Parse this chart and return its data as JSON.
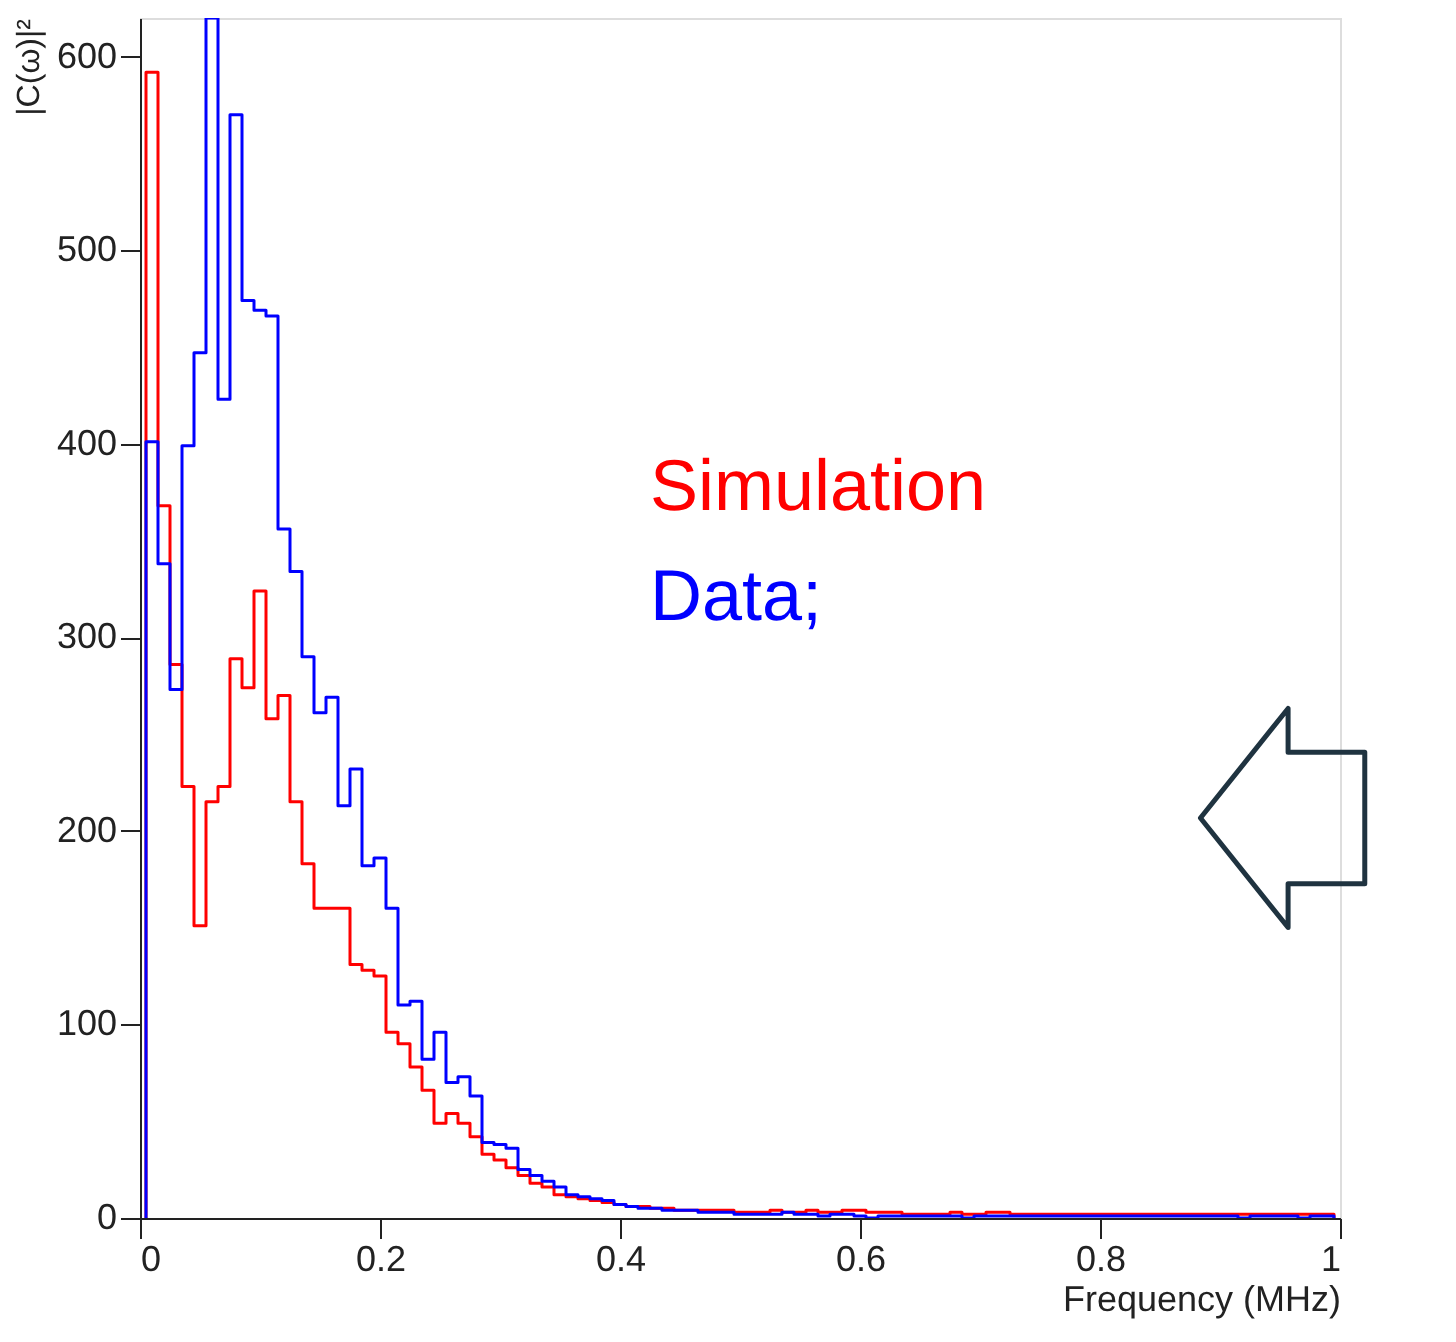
{
  "chart_data": {
    "type": "histogram",
    "xlabel": "Frequency (MHz)",
    "ylabel": "|C(ω)|²",
    "bins": [
      0.005,
      0.015,
      0.025,
      0.035,
      0.045,
      0.055,
      0.065,
      0.075,
      0.085,
      0.095,
      0.105,
      0.115,
      0.125,
      0.135,
      0.145,
      0.155,
      0.165,
      0.175,
      0.185,
      0.195,
      0.205,
      0.215,
      0.225,
      0.235,
      0.245,
      0.255,
      0.265,
      0.275,
      0.285,
      0.295,
      0.305,
      0.315,
      0.325,
      0.335,
      0.345,
      0.355,
      0.365,
      0.375,
      0.385,
      0.395,
      0.405,
      0.415,
      0.425,
      0.435,
      0.445,
      0.455,
      0.465,
      0.475,
      0.485,
      0.495,
      0.505,
      0.515,
      0.525,
      0.535,
      0.545,
      0.555,
      0.565,
      0.575,
      0.585,
      0.595,
      0.605,
      0.615,
      0.625,
      0.635,
      0.645,
      0.655,
      0.665,
      0.675,
      0.685,
      0.695,
      0.705,
      0.715,
      0.725,
      0.735,
      0.745,
      0.755,
      0.765,
      0.775,
      0.785,
      0.795,
      0.805,
      0.815,
      0.825,
      0.835,
      0.845,
      0.855,
      0.865,
      0.875,
      0.885,
      0.895,
      0.905,
      0.915,
      0.925,
      0.935,
      0.945,
      0.955,
      0.965,
      0.975,
      0.985,
      0.995
    ],
    "series": [
      {
        "name": "Simulation",
        "color": "#ff0000",
        "values": [
          592,
          368,
          286,
          223,
          151,
          215,
          223,
          289,
          274,
          324,
          258,
          270,
          215,
          183,
          160,
          160,
          160,
          131,
          128,
          125,
          96,
          90,
          78,
          66,
          49,
          54,
          49,
          42,
          33,
          30,
          26,
          22,
          18,
          16,
          12,
          11,
          10,
          9,
          8,
          7,
          6,
          6,
          5,
          5,
          4,
          4,
          4,
          4,
          4,
          3,
          3,
          3,
          4,
          3,
          3,
          4,
          3,
          3,
          4,
          4,
          3,
          3,
          3,
          2,
          2,
          2,
          2,
          3,
          2,
          2,
          3,
          3,
          2,
          2,
          2,
          2,
          2,
          2,
          2,
          2,
          2,
          2,
          2,
          2,
          2,
          2,
          2,
          2,
          2,
          2,
          2,
          2,
          2,
          2,
          2,
          2,
          2,
          2,
          2
        ]
      },
      {
        "name": "Data;",
        "color": "#0000ff",
        "values": [
          401,
          338,
          273,
          399,
          447,
          620,
          423,
          570,
          474,
          469,
          466,
          356,
          334,
          290,
          261,
          269,
          213,
          232,
          182,
          186,
          160,
          110,
          112,
          82,
          96,
          70,
          73,
          63,
          39,
          38,
          36,
          25,
          22,
          19,
          16,
          12,
          11,
          10,
          9,
          7,
          6,
          5,
          5,
          4,
          4,
          4,
          3,
          3,
          3,
          2,
          2,
          2,
          2,
          3,
          2,
          2,
          1,
          2,
          2,
          1,
          0,
          1,
          1,
          1,
          1,
          1,
          1,
          1,
          0,
          1,
          1,
          1,
          1,
          1,
          1,
          1,
          1,
          1,
          1,
          1,
          1,
          1,
          1,
          1,
          1,
          1,
          1,
          1,
          1,
          1,
          1,
          0,
          1,
          1,
          1,
          1,
          0,
          1,
          1
        ]
      }
    ],
    "xlim": [
      0,
      1
    ],
    "xticks": [
      0,
      0.2,
      0.4,
      0.6,
      0.8,
      1
    ],
    "ylim": [
      0,
      620
    ],
    "yticks": [
      0,
      100,
      200,
      300,
      400,
      500,
      600
    ],
    "grid": false
  }
}
